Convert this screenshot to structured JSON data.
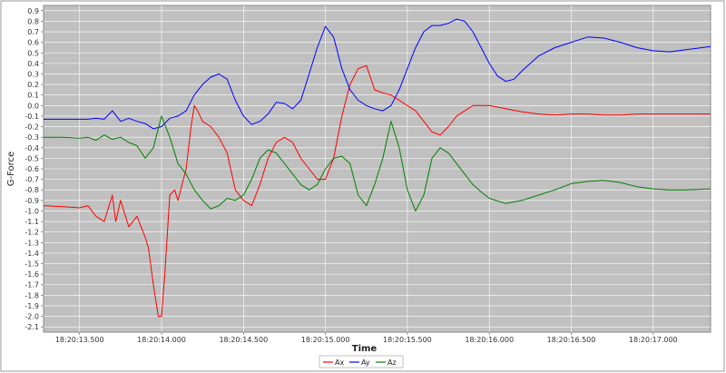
{
  "chart_data": {
    "type": "line",
    "xlabel": "Time",
    "ylabel": "G-Force",
    "ylim": [
      -2.15,
      0.95
    ],
    "y_ticks": [
      0.9,
      0.8,
      0.7,
      0.6,
      0.5,
      0.4,
      0.3,
      0.2,
      0.1,
      0.0,
      -0.1,
      -0.2,
      -0.3,
      -0.4,
      -0.5,
      -0.6,
      -0.7,
      -0.8,
      -0.9,
      -1.0,
      -1.1,
      -1.2,
      -1.3,
      -1.4,
      -1.5,
      -1.6,
      -1.7,
      -1.8,
      -1.9,
      -2.0,
      -2.1
    ],
    "xlim": [
      13.28,
      17.35
    ],
    "x_ticks": [
      13.5,
      14.0,
      14.5,
      15.0,
      15.5,
      16.0,
      16.5,
      17.0
    ],
    "x_tick_labels": [
      "18:20:13.500",
      "18:20:14.000",
      "18:20:14.500",
      "18:20:15.000",
      "18:20:15.500",
      "18:20:16.000",
      "18:20:16.500",
      "18:20:17.000"
    ],
    "grid": true,
    "background_color": "#c0c0c0",
    "grid_color": "#ffffff",
    "legend_position": "bottom",
    "series": [
      {
        "name": "Ax",
        "color": "#ff0000",
        "x": [
          13.28,
          13.4,
          13.5,
          13.55,
          13.6,
          13.65,
          13.7,
          13.72,
          13.75,
          13.8,
          13.85,
          13.9,
          13.92,
          13.95,
          13.98,
          14.0,
          14.02,
          14.05,
          14.08,
          14.1,
          14.15,
          14.18,
          14.2,
          14.22,
          14.25,
          14.3,
          14.35,
          14.4,
          14.45,
          14.5,
          14.55,
          14.6,
          14.65,
          14.7,
          14.75,
          14.8,
          14.85,
          14.9,
          14.95,
          15.0,
          15.05,
          15.1,
          15.15,
          15.2,
          15.25,
          15.3,
          15.35,
          15.4,
          15.45,
          15.5,
          15.55,
          15.6,
          15.65,
          15.7,
          15.75,
          15.8,
          15.85,
          15.9,
          16.0,
          16.1,
          16.2,
          16.3,
          16.4,
          16.5,
          16.6,
          16.7,
          16.8,
          16.9,
          17.0,
          17.1,
          17.2,
          17.35
        ],
        "y": [
          -0.95,
          -0.96,
          -0.97,
          -0.95,
          -1.05,
          -1.1,
          -0.85,
          -1.1,
          -0.9,
          -1.15,
          -1.05,
          -1.25,
          -1.35,
          -1.7,
          -2.0,
          -2.0,
          -1.6,
          -0.85,
          -0.8,
          -0.9,
          -0.6,
          -0.2,
          0.0,
          -0.05,
          -0.15,
          -0.2,
          -0.3,
          -0.45,
          -0.8,
          -0.9,
          -0.95,
          -0.75,
          -0.5,
          -0.35,
          -0.3,
          -0.35,
          -0.5,
          -0.6,
          -0.7,
          -0.7,
          -0.5,
          -0.1,
          0.2,
          0.35,
          0.38,
          0.15,
          0.12,
          0.1,
          0.05,
          0.0,
          -0.05,
          -0.15,
          -0.25,
          -0.28,
          -0.2,
          -0.1,
          -0.05,
          0.0,
          0.0,
          -0.03,
          -0.06,
          -0.08,
          -0.09,
          -0.08,
          -0.08,
          -0.09,
          -0.09,
          -0.08,
          -0.08,
          -0.08,
          -0.08,
          -0.08
        ]
      },
      {
        "name": "Ay",
        "color": "#0000ff",
        "x": [
          13.28,
          13.4,
          13.5,
          13.55,
          13.6,
          13.65,
          13.7,
          13.75,
          13.8,
          13.85,
          13.9,
          13.95,
          14.0,
          14.05,
          14.1,
          14.15,
          14.2,
          14.25,
          14.3,
          14.35,
          14.4,
          14.45,
          14.5,
          14.55,
          14.6,
          14.65,
          14.7,
          14.75,
          14.8,
          14.85,
          14.9,
          14.95,
          15.0,
          15.05,
          15.1,
          15.15,
          15.2,
          15.25,
          15.3,
          15.35,
          15.4,
          15.45,
          15.5,
          15.55,
          15.6,
          15.65,
          15.7,
          15.75,
          15.8,
          15.85,
          15.9,
          15.95,
          16.0,
          16.05,
          16.1,
          16.15,
          16.2,
          16.3,
          16.4,
          16.5,
          16.6,
          16.7,
          16.8,
          16.9,
          17.0,
          17.1,
          17.2,
          17.35
        ],
        "y": [
          -0.13,
          -0.13,
          -0.13,
          -0.13,
          -0.12,
          -0.13,
          -0.05,
          -0.15,
          -0.12,
          -0.15,
          -0.17,
          -0.22,
          -0.2,
          -0.12,
          -0.1,
          -0.05,
          0.1,
          0.2,
          0.27,
          0.3,
          0.25,
          0.05,
          -0.1,
          -0.18,
          -0.15,
          -0.08,
          0.03,
          0.02,
          -0.03,
          0.05,
          0.3,
          0.55,
          0.75,
          0.65,
          0.35,
          0.15,
          0.05,
          0.0,
          -0.03,
          -0.05,
          0.0,
          0.15,
          0.35,
          0.55,
          0.7,
          0.76,
          0.76,
          0.78,
          0.82,
          0.8,
          0.7,
          0.55,
          0.4,
          0.28,
          0.23,
          0.25,
          0.33,
          0.47,
          0.55,
          0.6,
          0.65,
          0.64,
          0.6,
          0.55,
          0.52,
          0.51,
          0.53,
          0.56
        ]
      },
      {
        "name": "Az",
        "color": "#008000",
        "x": [
          13.28,
          13.4,
          13.5,
          13.55,
          13.6,
          13.65,
          13.7,
          13.75,
          13.8,
          13.85,
          13.9,
          13.95,
          14.0,
          14.05,
          14.1,
          14.15,
          14.2,
          14.25,
          14.3,
          14.35,
          14.4,
          14.45,
          14.5,
          14.55,
          14.6,
          14.65,
          14.7,
          14.75,
          14.8,
          14.85,
          14.9,
          14.95,
          15.0,
          15.05,
          15.1,
          15.15,
          15.2,
          15.25,
          15.3,
          15.35,
          15.4,
          15.45,
          15.5,
          15.55,
          15.6,
          15.65,
          15.7,
          15.75,
          15.8,
          15.85,
          15.9,
          15.95,
          16.0,
          16.1,
          16.2,
          16.3,
          16.4,
          16.5,
          16.6,
          16.7,
          16.8,
          16.9,
          17.0,
          17.1,
          17.2,
          17.35
        ],
        "y": [
          -0.3,
          -0.3,
          -0.31,
          -0.3,
          -0.33,
          -0.28,
          -0.32,
          -0.3,
          -0.35,
          -0.38,
          -0.5,
          -0.4,
          -0.1,
          -0.3,
          -0.55,
          -0.65,
          -0.8,
          -0.9,
          -0.98,
          -0.95,
          -0.88,
          -0.9,
          -0.85,
          -0.7,
          -0.5,
          -0.42,
          -0.45,
          -0.55,
          -0.65,
          -0.75,
          -0.8,
          -0.75,
          -0.6,
          -0.5,
          -0.48,
          -0.55,
          -0.85,
          -0.95,
          -0.75,
          -0.5,
          -0.15,
          -0.4,
          -0.8,
          -1.0,
          -0.85,
          -0.5,
          -0.4,
          -0.45,
          -0.55,
          -0.65,
          -0.75,
          -0.82,
          -0.88,
          -0.93,
          -0.9,
          -0.85,
          -0.8,
          -0.74,
          -0.72,
          -0.71,
          -0.73,
          -0.77,
          -0.79,
          -0.8,
          -0.8,
          -0.79
        ]
      }
    ]
  }
}
